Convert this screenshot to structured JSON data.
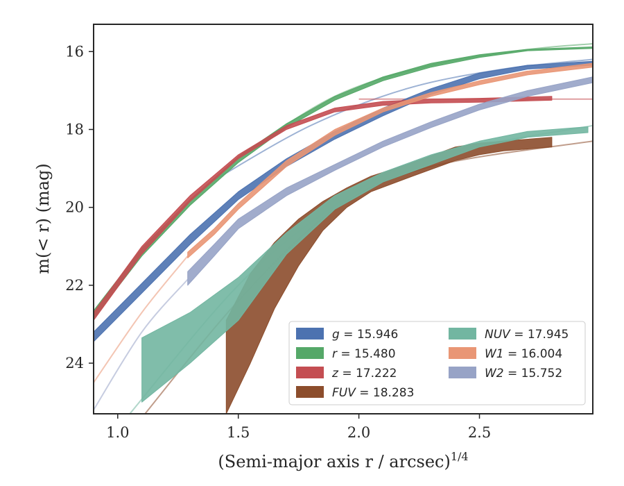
{
  "chart_data": {
    "type": "line",
    "title": "",
    "xlabel": "(Semi-major axis r / arcsec)",
    "xlabel_power": "1/4",
    "ylabel": "m(< r) (mag)",
    "xlim": [
      0.9,
      2.97
    ],
    "ylim": [
      25.3,
      15.3
    ],
    "y_inverted": true,
    "grid": false,
    "legend_placement": "lower-right",
    "xticks": [
      1.0,
      1.5,
      2.0,
      2.5
    ],
    "xtick_labels": [
      "1.0",
      "1.5",
      "2.0",
      "2.5"
    ],
    "yticks": [
      16,
      18,
      20,
      22,
      24
    ],
    "ytick_labels": [
      "16",
      "18",
      "20",
      "22",
      "24"
    ],
    "series": [
      {
        "name": "g = 15.946",
        "band": "g",
        "total_mag": "15.946",
        "color": "#4c72b0",
        "x": [
          0.9,
          1.1,
          1.3,
          1.5,
          1.7,
          1.9,
          2.1,
          2.3,
          2.5,
          2.7,
          2.97
        ],
        "y_low": [
          23.45,
          22.2,
          20.95,
          19.8,
          18.95,
          18.25,
          17.65,
          17.1,
          16.7,
          16.45,
          16.35
        ],
        "y_high": [
          23.2,
          21.95,
          20.7,
          19.6,
          18.75,
          18.05,
          17.45,
          16.95,
          16.55,
          16.35,
          16.25
        ],
        "model_x": [
          1.4,
          1.8,
          2.2,
          2.6,
          2.97
        ],
        "model_y": [
          19.3,
          17.9,
          16.95,
          16.45,
          16.2
        ]
      },
      {
        "name": "r = 15.480",
        "band": "r",
        "total_mag": "15.480",
        "color": "#55a868",
        "x": [
          0.9,
          1.1,
          1.3,
          1.5,
          1.7,
          1.9,
          2.1,
          2.3,
          2.5,
          2.7,
          2.97
        ],
        "y_low": [
          22.85,
          21.25,
          19.95,
          18.85,
          17.95,
          17.25,
          16.75,
          16.4,
          16.15,
          15.98,
          15.92
        ],
        "y_high": [
          22.65,
          21.05,
          19.8,
          18.7,
          17.85,
          17.15,
          16.65,
          16.3,
          16.08,
          15.94,
          15.88
        ],
        "model_x": [
          1.5,
          1.9,
          2.3,
          2.7,
          2.97
        ],
        "model_y": [
          18.7,
          17.15,
          16.35,
          15.95,
          15.8
        ]
      },
      {
        "name": "z = 17.222",
        "band": "z",
        "total_mag": "17.222",
        "color": "#c44e52",
        "x": [
          0.9,
          1.1,
          1.3,
          1.5,
          1.7,
          1.9,
          2.1,
          2.3,
          2.5,
          2.8
        ],
        "y_low": [
          22.9,
          21.2,
          19.85,
          18.75,
          18.0,
          17.55,
          17.38,
          17.32,
          17.3,
          17.25
        ],
        "y_high": [
          22.7,
          21.0,
          19.7,
          18.65,
          17.9,
          17.45,
          17.28,
          17.22,
          17.2,
          17.15
        ],
        "model_x": [
          2.0,
          2.97
        ],
        "model_y": [
          17.22,
          17.22
        ]
      },
      {
        "name": "FUV = 18.283",
        "band": "FUV",
        "total_mag": "18.283",
        "color": "#8c4d2c",
        "x": [
          1.45,
          1.55,
          1.65,
          1.75,
          1.85,
          1.95,
          2.05,
          2.2,
          2.4,
          2.5,
          2.6,
          2.8
        ],
        "y_low": [
          25.3,
          24.0,
          22.6,
          21.5,
          20.6,
          20.0,
          19.6,
          19.25,
          18.8,
          18.65,
          18.55,
          18.45
        ],
        "y_high": [
          22.9,
          21.7,
          20.9,
          20.3,
          19.85,
          19.5,
          19.2,
          18.9,
          18.45,
          18.35,
          18.3,
          18.2
        ],
        "model_x": [
          1.1,
          1.5,
          1.9,
          2.3,
          2.97
        ],
        "model_y": [
          25.4,
          22.4,
          20.05,
          18.95,
          18.3
        ]
      },
      {
        "name": "NUV = 17.945",
        "band": "NUV",
        "total_mag": "17.945",
        "color": "#72b6a1",
        "x": [
          1.1,
          1.3,
          1.5,
          1.7,
          1.9,
          2.1,
          2.3,
          2.5,
          2.7,
          2.95
        ],
        "y_low": [
          25.0,
          24.0,
          22.9,
          21.2,
          20.05,
          19.35,
          18.9,
          18.45,
          18.2,
          18.08
        ],
        "y_high": [
          23.35,
          22.7,
          21.8,
          20.65,
          19.7,
          19.1,
          18.65,
          18.3,
          18.05,
          17.93
        ],
        "model_x": [
          1.05,
          1.5,
          1.9,
          2.3,
          2.97
        ],
        "model_y": [
          25.3,
          22.0,
          19.95,
          18.7,
          17.9
        ]
      },
      {
        "name": "W1 = 16.004",
        "band": "W1",
        "total_mag": "16.004",
        "color": "#e99675",
        "x": [
          1.29,
          1.4,
          1.5,
          1.7,
          1.9,
          2.1,
          2.3,
          2.5,
          2.7,
          2.97
        ],
        "y_low": [
          21.3,
          20.7,
          20.05,
          18.95,
          18.15,
          17.55,
          17.15,
          16.85,
          16.6,
          16.4
        ],
        "y_high": [
          21.15,
          20.55,
          19.9,
          18.8,
          18.0,
          17.45,
          17.05,
          16.75,
          16.5,
          16.3
        ],
        "model_x": [
          0.9,
          1.1,
          1.29
        ],
        "model_y": [
          24.5,
          22.7,
          21.25
        ]
      },
      {
        "name": "W2 = 15.752",
        "band": "W2",
        "total_mag": "15.752",
        "color": "#97a3c6",
        "x": [
          1.29,
          1.4,
          1.5,
          1.7,
          1.9,
          2.1,
          2.3,
          2.5,
          2.7,
          2.97
        ],
        "y_low": [
          22.0,
          21.25,
          20.55,
          19.7,
          19.05,
          18.45,
          17.95,
          17.5,
          17.15,
          16.8
        ],
        "y_high": [
          21.65,
          20.95,
          20.3,
          19.5,
          18.9,
          18.3,
          17.8,
          17.35,
          17.0,
          16.65
        ],
        "model_x": [
          0.9,
          1.1,
          1.29
        ],
        "model_y": [
          25.2,
          23.2,
          21.85
        ]
      }
    ],
    "legend": {
      "columns": [
        [
          "g = 15.946",
          "r = 15.480",
          "z = 17.222",
          "FUV = 18.283"
        ],
        [
          "NUV = 17.945",
          "W1 = 16.004",
          "W2 = 15.752"
        ]
      ]
    }
  }
}
